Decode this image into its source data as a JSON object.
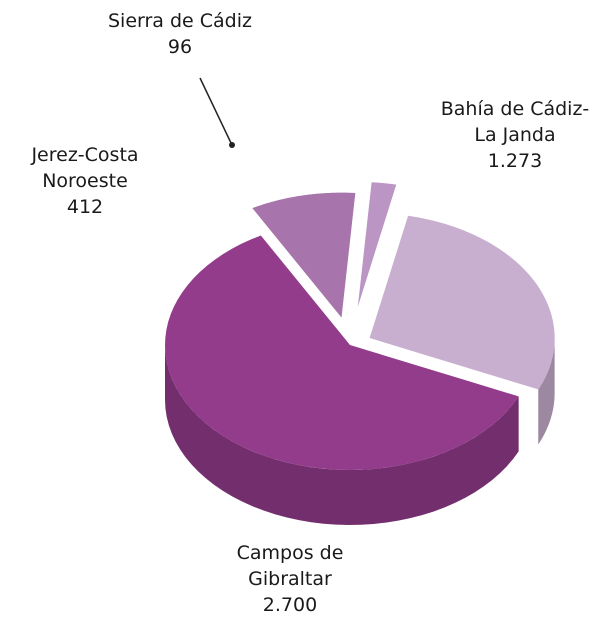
{
  "chart_data": {
    "type": "pie",
    "categories": [
      "Bahía de Cádiz-La Janda",
      "Campos de Gibraltar",
      "Jerez-Costa Noroeste",
      "Sierra de Cádiz"
    ],
    "values": [
      1273,
      2700,
      412,
      96
    ],
    "value_labels": [
      "1.273",
      "2.700",
      "412",
      "96"
    ],
    "colors": [
      "#c8aecf",
      "#943c8c",
      "#a874ac",
      "#bb95c3"
    ]
  }
}
